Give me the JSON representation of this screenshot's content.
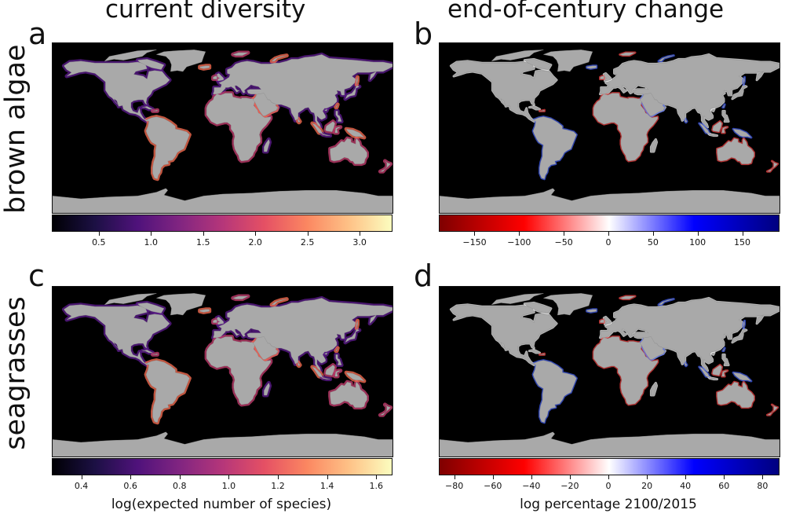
{
  "figure": {
    "col_titles": [
      "current diversity",
      "end-of-century change"
    ],
    "row_titles": [
      "brown algae",
      "seagrasses"
    ],
    "panel_letters": [
      "a",
      "b",
      "c",
      "d"
    ]
  },
  "chart_data": [
    {
      "type": "heatmap",
      "panel": "a",
      "row": "brown algae",
      "column": "current diversity",
      "colormap": "magma",
      "colorbar": {
        "range": [
          0.05,
          3.3
        ],
        "ticks": [
          0.5,
          1.0,
          1.5,
          2.0,
          2.5,
          3.0
        ],
        "tick_labels": [
          "0.5",
          "1.0",
          "1.5",
          "2.0",
          "2.5",
          "3.0"
        ],
        "label": ""
      }
    },
    {
      "type": "heatmap",
      "panel": "b",
      "row": "brown algae",
      "column": "end-of-century change",
      "colormap": "seismic_r",
      "colorbar": {
        "range": [
          -190,
          190
        ],
        "ticks": [
          -150,
          -100,
          -50,
          0,
          50,
          100,
          150
        ],
        "tick_labels": [
          "−150",
          "−100",
          "−50",
          "0",
          "50",
          "100",
          "150"
        ],
        "label": ""
      }
    },
    {
      "type": "heatmap",
      "panel": "c",
      "row": "seagrasses",
      "column": "current diversity",
      "colormap": "magma",
      "colorbar": {
        "range": [
          0.28,
          1.66
        ],
        "ticks": [
          0.4,
          0.6,
          0.8,
          1.0,
          1.2,
          1.4,
          1.6
        ],
        "tick_labels": [
          "0.4",
          "0.6",
          "0.8",
          "1.0",
          "1.2",
          "1.4",
          "1.6"
        ],
        "label": "log(expected number of species)"
      }
    },
    {
      "type": "heatmap",
      "panel": "d",
      "row": "seagrasses",
      "column": "end-of-century change",
      "colormap": "seismic_r",
      "colorbar": {
        "range": [
          -88,
          88
        ],
        "ticks": [
          -80,
          -60,
          -40,
          -20,
          0,
          20,
          40,
          60,
          80
        ],
        "tick_labels": [
          "−80",
          "−60",
          "−40",
          "−20",
          "0",
          "20",
          "40",
          "60",
          "80"
        ],
        "label": "log percentage 2100/2015"
      }
    }
  ],
  "colors": {
    "ocean": "#000000",
    "land": "#a9a9a9",
    "magma": [
      "#000004",
      "#1c1044",
      "#4f127b",
      "#812581",
      "#b5367a",
      "#e55064",
      "#fb8761",
      "#fec287",
      "#fcfdbf"
    ],
    "diverging": [
      "#7f0000",
      "#ff0000",
      "#ffffff",
      "#0000ff",
      "#00007f"
    ]
  }
}
